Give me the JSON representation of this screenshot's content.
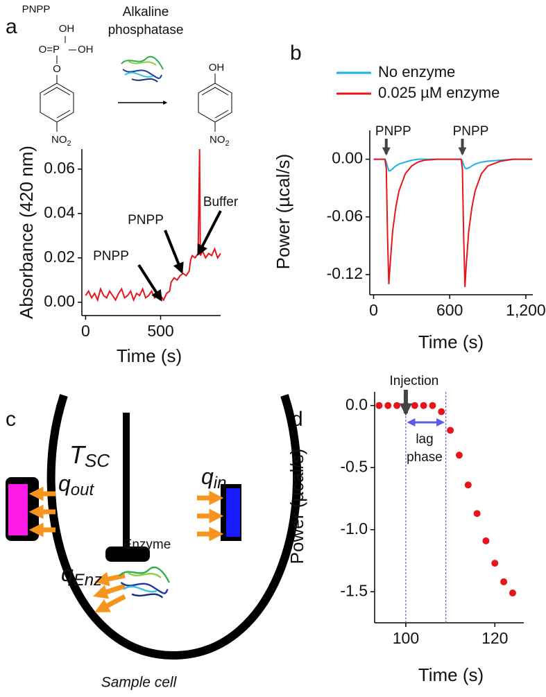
{
  "panels": [
    "a",
    "b",
    "c",
    "d"
  ],
  "scheme": {
    "reactant": "PNPP",
    "oh_top": "OH",
    "o_p": "O=P",
    "oh_side": "OH",
    "o_link": "O",
    "no": "NO",
    "no_sub": "2",
    "enzyme_line1": "Alkaline",
    "enzyme_line2": "phosphatase",
    "product_oh": "OH",
    "product_no": "NO",
    "product_no_sub": "2"
  },
  "diagram": {
    "t": "T",
    "t_sub": "SC",
    "q_out": "q",
    "q_out_sub": "out",
    "q_in": "q",
    "q_in_sub": "in",
    "q_enz": "q",
    "q_enz_sub": "Enz",
    "enzyme": "Enzyme",
    "cell": "Sample cell"
  },
  "chart_data": [
    {
      "type": "line",
      "xlabel": "Time (s)",
      "ylabel": "Absorbance (420 nm)",
      "x": [
        0,
        20,
        40,
        60,
        80,
        100,
        120,
        140,
        160,
        180,
        200,
        220,
        240,
        260,
        280,
        300,
        320,
        340,
        360,
        380,
        400,
        420,
        440,
        460,
        480,
        500,
        520,
        540,
        560,
        570,
        590,
        610,
        630,
        650,
        670,
        690,
        700,
        710,
        730,
        750,
        760,
        765,
        780,
        800,
        820,
        840,
        860,
        880,
        900
      ],
      "series": [
        {
          "color": "#e8141c",
          "values": [
            0.003,
            0.005,
            0.002,
            0.004,
            0.001,
            0.006,
            0.003,
            0.002,
            0.005,
            0.003,
            0.001,
            0.004,
            0.006,
            0.002,
            0.003,
            0.005,
            0.001,
            0.004,
            0.003,
            0.006,
            0.002,
            0.003,
            0.005,
            0.002,
            0.004,
            0.003,
            0.001,
            0.004,
            0.005,
            0.009,
            0.011,
            0.01,
            0.012,
            0.013,
            0.012,
            0.014,
            0.019,
            0.021,
            0.02,
            0.022,
            0.069,
            0.021,
            0.023,
            0.02,
            0.022,
            0.021,
            0.024,
            0.02,
            0.022
          ]
        }
      ],
      "xlim": [
        -25,
        900
      ],
      "xticks": [
        0,
        500
      ],
      "ylim": [
        -0.006,
        0.069
      ],
      "yticks": [
        {
          "value": 0,
          "label": "0.00"
        },
        0.02,
        0.04,
        0.06
      ],
      "annotations": [
        "PNPP",
        "PNPP",
        "Buffer"
      ]
    },
    {
      "type": "line",
      "xlabel": "Time (s)",
      "ylabel": "Power (µcal/s)",
      "x": [
        0,
        50,
        90,
        100,
        110,
        120,
        130,
        150,
        175,
        200,
        250,
        300,
        350,
        400,
        500,
        600,
        690,
        700,
        710,
        720,
        730,
        750,
        775,
        800,
        850,
        900,
        1000,
        1100,
        1250
      ],
      "series": [
        {
          "name": "No enzyme",
          "color": "#1ab0e8",
          "values": [
            0,
            0,
            0,
            -0.003,
            -0.008,
            -0.012,
            -0.012,
            -0.01,
            -0.007,
            -0.005,
            -0.003,
            -0.001,
            0,
            0,
            0,
            0,
            0,
            -0.002,
            -0.006,
            -0.009,
            -0.01,
            -0.009,
            -0.007,
            -0.005,
            -0.003,
            -0.002,
            -0.001,
            0,
            0
          ]
        },
        {
          "name": "0.025 µM enzyme",
          "color": "#e8141c",
          "values": [
            0,
            0,
            0,
            -0.01,
            -0.08,
            -0.13,
            -0.11,
            -0.075,
            -0.05,
            -0.033,
            -0.015,
            -0.007,
            -0.003,
            -0.001,
            0,
            0,
            0,
            -0.01,
            -0.08,
            -0.133,
            -0.11,
            -0.075,
            -0.05,
            -0.033,
            -0.015,
            -0.007,
            -0.002,
            0,
            0
          ]
        }
      ],
      "xlim": [
        -30,
        1255
      ],
      "xticks": [
        0,
        600,
        {
          "value": 1200,
          "label": "1,200"
        }
      ],
      "ylim": [
        -0.141,
        0.03
      ],
      "yticks": [
        {
          "value": 0,
          "label": "0.00"
        },
        -0.06,
        -0.12
      ],
      "annotations": [
        "PNPP",
        "PNPP"
      ]
    },
    {
      "type": "scatter",
      "xlabel": "Time (s)",
      "ylabel": "Power (µcal/s)",
      "x": [
        94,
        96,
        98,
        100,
        102,
        104,
        106,
        108,
        110,
        112,
        114,
        116,
        118,
        120,
        122,
        124
      ],
      "series": [
        {
          "color": "#e8141c",
          "values": [
            0,
            0,
            0,
            0,
            0,
            0,
            0,
            -0.05,
            -0.2,
            -0.4,
            -0.64,
            -0.87,
            -1.09,
            -1.27,
            -1.42,
            -1.51
          ]
        }
      ],
      "xlim": [
        93,
        126.5
      ],
      "xticks": [
        100,
        120
      ],
      "ylim": [
        -1.75,
        0.11
      ],
      "yticks": [
        {
          "value": 0,
          "label": "0.0"
        },
        -0.5,
        {
          "value": -1,
          "label": "-1.0"
        },
        -1.5
      ],
      "vlines": [
        100,
        109
      ],
      "annotations": [
        "Injection",
        "lag",
        "phase"
      ]
    }
  ]
}
